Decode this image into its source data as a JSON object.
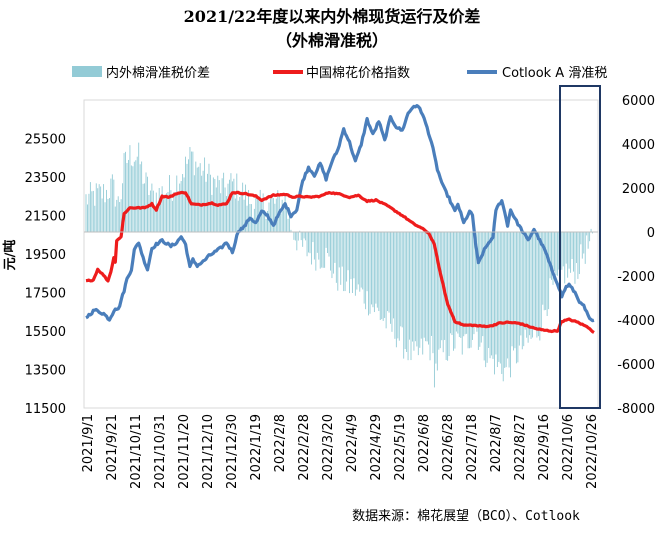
{
  "chart_data": {
    "type": "line",
    "title": "2021/22年度以来内外棉现货运行及价差",
    "subtitle": "（外棉滑准税）",
    "ylabel": "元/吨",
    "source": "数据来源：棉花展望（BCO）、Cotlook",
    "left_axis": {
      "ylim": [
        11500,
        27500
      ],
      "ticks": [
        11500,
        13500,
        15500,
        17500,
        19500,
        21500,
        23500,
        25500
      ]
    },
    "right_axis": {
      "ylim": [
        -8000,
        6000
      ],
      "ticks": [
        -8000,
        -6000,
        -4000,
        -2000,
        0,
        2000,
        4000,
        6000
      ]
    },
    "x_tick_labels": [
      "2021/9/1",
      "2021/9/21",
      "2021/10/11",
      "2021/10/31",
      "2021/11/20",
      "2021/12/10",
      "2021/12/30",
      "2022/1/19",
      "2022/2/8",
      "2022/2/28",
      "2022/3/20",
      "2022/4/9",
      "2022/4/29",
      "2022/5/19",
      "2022/6/8",
      "2022/6/28",
      "2022/7/18",
      "2022/8/7",
      "2022/8/27",
      "2022/9/16",
      "2022/10/6",
      "2022/10/26"
    ],
    "legend": [
      {
        "name": "内外棉滑准税价差",
        "color": "#93cbd6",
        "kind": "bar"
      },
      {
        "name": "中国棉花价格指数",
        "color": "#ee1c1c",
        "kind": "line"
      },
      {
        "name": "Cotlook A 滑准税",
        "color": "#4a7ebb",
        "kind": "line"
      }
    ],
    "series": [
      {
        "name": "中国棉花价格指数",
        "axis": "left",
        "color": "#ee1c1c",
        "anchors": [
          [
            0,
            18100
          ],
          [
            5,
            18150
          ],
          [
            8,
            18700
          ],
          [
            12,
            18400
          ],
          [
            15,
            18100
          ],
          [
            17,
            18600
          ],
          [
            19,
            19300
          ],
          [
            20,
            19100
          ],
          [
            21,
            20200
          ],
          [
            24,
            20400
          ],
          [
            26,
            21600
          ],
          [
            30,
            21900
          ],
          [
            40,
            21900
          ],
          [
            45,
            22100
          ],
          [
            48,
            21800
          ],
          [
            52,
            22500
          ],
          [
            57,
            22450
          ],
          [
            62,
            22650
          ],
          [
            68,
            22700
          ],
          [
            72,
            22100
          ],
          [
            78,
            22050
          ],
          [
            86,
            22150
          ],
          [
            90,
            22050
          ],
          [
            96,
            22100
          ],
          [
            100,
            22700
          ],
          [
            108,
            22650
          ],
          [
            116,
            22500
          ],
          [
            120,
            22300
          ],
          [
            128,
            22550
          ],
          [
            136,
            22600
          ],
          [
            142,
            22450
          ],
          [
            146,
            22500
          ],
          [
            152,
            22450
          ],
          [
            160,
            22500
          ],
          [
            166,
            22700
          ],
          [
            174,
            22600
          ],
          [
            180,
            22450
          ],
          [
            186,
            22550
          ],
          [
            192,
            22250
          ],
          [
            198,
            22300
          ],
          [
            206,
            22000
          ],
          [
            212,
            21700
          ],
          [
            218,
            21400
          ],
          [
            224,
            21050
          ],
          [
            228,
            20900
          ],
          [
            234,
            20600
          ],
          [
            238,
            20000
          ],
          [
            240,
            19200
          ],
          [
            243,
            18200
          ],
          [
            247,
            16900
          ],
          [
            252,
            16000
          ],
          [
            258,
            15800
          ],
          [
            264,
            15800
          ],
          [
            270,
            15750
          ],
          [
            276,
            15750
          ],
          [
            282,
            15900
          ],
          [
            288,
            15950
          ],
          [
            296,
            15900
          ],
          [
            300,
            15800
          ],
          [
            306,
            15650
          ],
          [
            312,
            15550
          ],
          [
            318,
            15500
          ],
          [
            322,
            15500
          ],
          [
            325,
            16000
          ],
          [
            330,
            16100
          ],
          [
            336,
            15950
          ],
          [
            340,
            15800
          ],
          [
            344,
            15650
          ],
          [
            347,
            15400
          ]
        ]
      },
      {
        "name": "Cotlook A 滑准税",
        "axis": "left",
        "color": "#4a7ebb",
        "anchors": [
          [
            0,
            16200
          ],
          [
            6,
            16600
          ],
          [
            12,
            16400
          ],
          [
            16,
            16100
          ],
          [
            20,
            16700
          ],
          [
            22,
            16600
          ],
          [
            24,
            17100
          ],
          [
            26,
            17600
          ],
          [
            28,
            18200
          ],
          [
            31,
            18700
          ],
          [
            33,
            19700
          ],
          [
            36,
            20100
          ],
          [
            39,
            19300
          ],
          [
            42,
            18700
          ],
          [
            45,
            19800
          ],
          [
            48,
            20000
          ],
          [
            52,
            20200
          ],
          [
            56,
            20000
          ],
          [
            58,
            19900
          ],
          [
            62,
            20100
          ],
          [
            65,
            20400
          ],
          [
            68,
            20000
          ],
          [
            71,
            18800
          ],
          [
            73,
            19200
          ],
          [
            76,
            18900
          ],
          [
            80,
            19100
          ],
          [
            84,
            19400
          ],
          [
            88,
            19600
          ],
          [
            92,
            19800
          ],
          [
            96,
            20100
          ],
          [
            100,
            19600
          ],
          [
            104,
            20700
          ],
          [
            108,
            20900
          ],
          [
            112,
            21400
          ],
          [
            116,
            21100
          ],
          [
            120,
            21700
          ],
          [
            124,
            21500
          ],
          [
            128,
            21000
          ],
          [
            132,
            21600
          ],
          [
            136,
            22100
          ],
          [
            140,
            21500
          ],
          [
            144,
            21800
          ],
          [
            148,
            23300
          ],
          [
            152,
            24000
          ],
          [
            156,
            23600
          ],
          [
            160,
            24200
          ],
          [
            164,
            23400
          ],
          [
            168,
            24300
          ],
          [
            172,
            24900
          ],
          [
            176,
            26000
          ],
          [
            180,
            25300
          ],
          [
            184,
            24300
          ],
          [
            188,
            25200
          ],
          [
            192,
            26500
          ],
          [
            196,
            25700
          ],
          [
            200,
            26400
          ],
          [
            204,
            25400
          ],
          [
            208,
            26600
          ],
          [
            212,
            26100
          ],
          [
            216,
            25900
          ],
          [
            220,
            26800
          ],
          [
            224,
            27200
          ],
          [
            228,
            27100
          ],
          [
            232,
            26300
          ],
          [
            236,
            25300
          ],
          [
            240,
            23900
          ],
          [
            244,
            23000
          ],
          [
            248,
            22400
          ],
          [
            252,
            21700
          ],
          [
            254,
            22100
          ],
          [
            258,
            21100
          ],
          [
            262,
            21700
          ],
          [
            264,
            21500
          ],
          [
            266,
            20100
          ],
          [
            268,
            19000
          ],
          [
            272,
            19700
          ],
          [
            276,
            20200
          ],
          [
            278,
            20300
          ],
          [
            280,
            21800
          ],
          [
            284,
            22300
          ],
          [
            288,
            21000
          ],
          [
            290,
            21800
          ],
          [
            294,
            21200
          ],
          [
            298,
            20700
          ],
          [
            302,
            20200
          ],
          [
            306,
            20800
          ],
          [
            310,
            20200
          ],
          [
            314,
            19600
          ],
          [
            318,
            18700
          ],
          [
            322,
            18000
          ],
          [
            325,
            17300
          ],
          [
            328,
            17800
          ],
          [
            330,
            17900
          ],
          [
            334,
            17500
          ],
          [
            338,
            16900
          ],
          [
            340,
            16800
          ],
          [
            344,
            16100
          ],
          [
            347,
            16000
          ]
        ]
      },
      {
        "name": "内外棉滑准税价差",
        "axis": "right",
        "color": "#93cbd6",
        "anchors": [
          [
            0,
            1500
          ],
          [
            8,
            1700
          ],
          [
            14,
            1800
          ],
          [
            18,
            2100
          ],
          [
            22,
            1300
          ],
          [
            24,
            1800
          ],
          [
            26,
            3000
          ],
          [
            30,
            3500
          ],
          [
            36,
            3400
          ],
          [
            40,
            2300
          ],
          [
            46,
            1600
          ],
          [
            52,
            1800
          ],
          [
            58,
            2000
          ],
          [
            64,
            2500
          ],
          [
            68,
            3000
          ],
          [
            72,
            3500
          ],
          [
            76,
            3000
          ],
          [
            82,
            2700
          ],
          [
            88,
            2200
          ],
          [
            94,
            2000
          ],
          [
            100,
            2200
          ],
          [
            106,
            1900
          ],
          [
            112,
            1400
          ],
          [
            118,
            1200
          ],
          [
            124,
            1300
          ],
          [
            130,
            1300
          ],
          [
            136,
            1400
          ],
          [
            140,
            300
          ],
          [
            146,
            -600
          ],
          [
            152,
            -900
          ],
          [
            158,
            -1100
          ],
          [
            164,
            -1100
          ],
          [
            170,
            -2000
          ],
          [
            176,
            -2300
          ],
          [
            182,
            -2500
          ],
          [
            188,
            -2800
          ],
          [
            194,
            -3200
          ],
          [
            200,
            -3700
          ],
          [
            206,
            -4200
          ],
          [
            212,
            -4600
          ],
          [
            218,
            -5200
          ],
          [
            224,
            -5700
          ],
          [
            228,
            -5500
          ],
          [
            232,
            -5100
          ],
          [
            236,
            -5300
          ],
          [
            238,
            -6400
          ],
          [
            242,
            -5600
          ],
          [
            246,
            -5400
          ],
          [
            250,
            -5100
          ],
          [
            254,
            -5000
          ],
          [
            258,
            -5200
          ],
          [
            262,
            -4800
          ],
          [
            266,
            -4300
          ],
          [
            270,
            -5200
          ],
          [
            274,
            -5600
          ],
          [
            280,
            -6000
          ],
          [
            286,
            -6300
          ],
          [
            292,
            -5800
          ],
          [
            298,
            -5200
          ],
          [
            304,
            -4900
          ],
          [
            310,
            -4300
          ],
          [
            314,
            -3300
          ],
          [
            318,
            -2600
          ],
          [
            322,
            -2300
          ],
          [
            326,
            -1800
          ],
          [
            330,
            -1900
          ],
          [
            336,
            -1600
          ],
          [
            340,
            -900
          ],
          [
            344,
            -600
          ],
          [
            347,
            -400
          ]
        ]
      }
    ],
    "n_points": 348
  }
}
